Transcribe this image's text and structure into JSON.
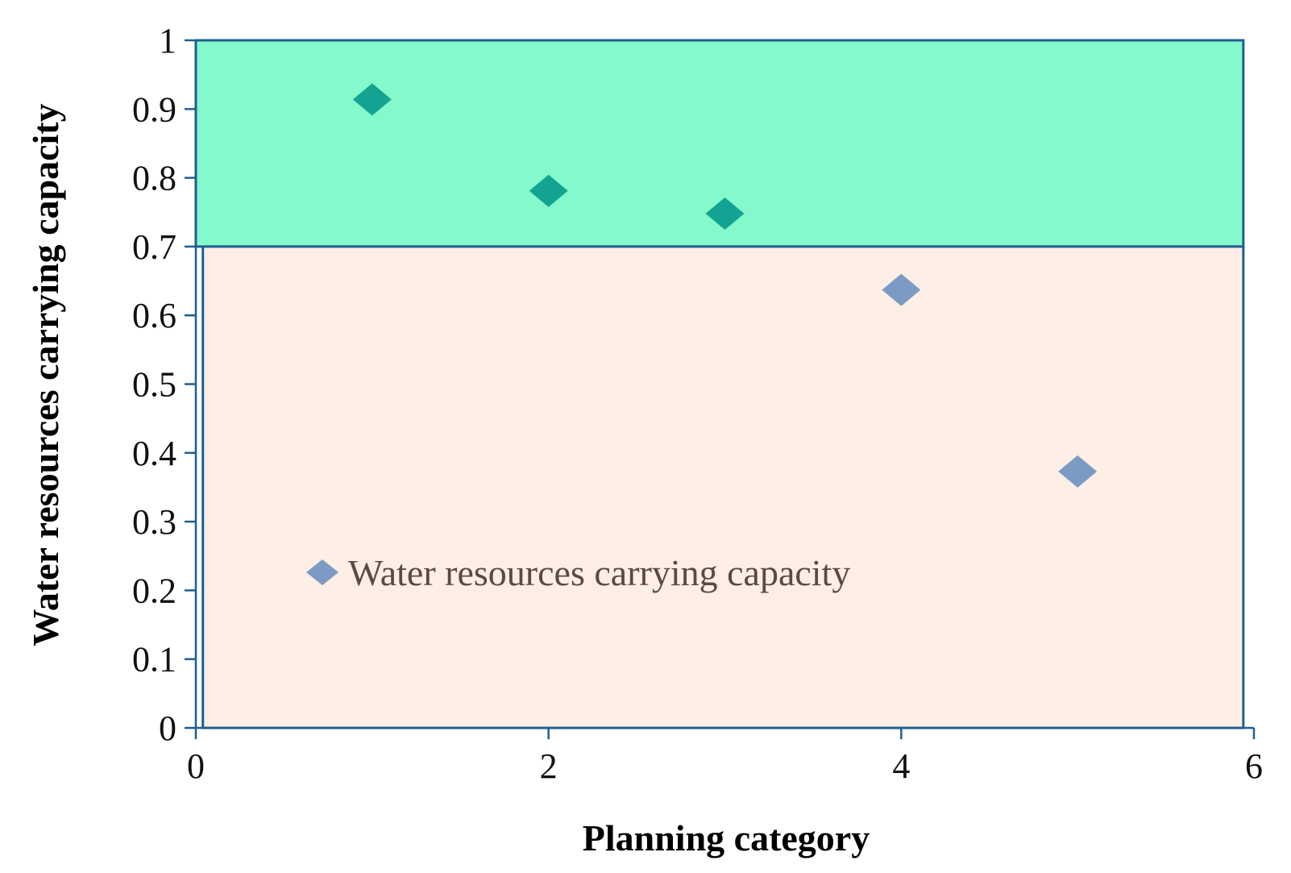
{
  "chart_data": {
    "type": "scatter",
    "title": "",
    "xlabel": "Planning category",
    "ylabel": "Water resources carrying capacity",
    "xlim": [
      0,
      6
    ],
    "ylim": [
      0,
      1
    ],
    "x_ticks": [
      0,
      2,
      4,
      6
    ],
    "x_tick_labels": [
      "0",
      "2",
      "4",
      "6"
    ],
    "y_ticks": [
      0,
      0.1,
      0.2,
      0.3,
      0.4,
      0.5,
      0.6,
      0.7,
      0.8,
      0.9,
      1
    ],
    "y_tick_labels": [
      "0",
      "0.1",
      "0.2",
      "0.3",
      "0.4",
      "0.5",
      "0.6",
      "0.7",
      "0.8",
      "0.9",
      "1"
    ],
    "grid": false,
    "legend_position": "inside-lower-left",
    "bands": [
      {
        "y0": 0.7,
        "y1": 1.0,
        "color": "#84f9cb"
      },
      {
        "y0": 0.0,
        "y1": 0.7,
        "color": "#fdeee6"
      }
    ],
    "band_border_color": "#1f5f8f",
    "series": [
      {
        "name": "Water resources carrying capacity",
        "marker": "diamond",
        "legend_color": "#7b9bc4",
        "points": [
          {
            "x": 1,
            "y": 0.914,
            "color": "#12a392"
          },
          {
            "x": 2,
            "y": 0.781,
            "color": "#12a392"
          },
          {
            "x": 3,
            "y": 0.748,
            "color": "#12a392"
          },
          {
            "x": 4,
            "y": 0.637,
            "color": "#7b9bc4"
          },
          {
            "x": 5,
            "y": 0.373,
            "color": "#7b9bc4"
          }
        ]
      }
    ]
  }
}
